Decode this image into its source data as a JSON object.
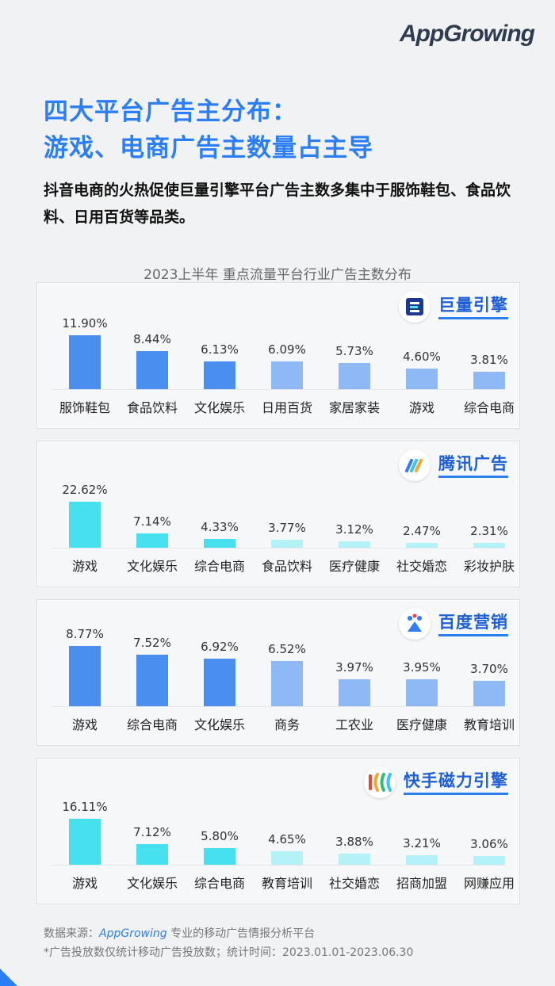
{
  "brand": {
    "logo_text": "AppGrowing"
  },
  "title_lines": [
    "四大平台广告主分布：",
    "游戏、电商广告主数量占主导"
  ],
  "subtitle": "抖音电商的火热促使巨量引擎平台广告主数多集中于服饰鞋包、食品饮料、日用百货等品类。",
  "footer": {
    "source_label": "数据来源：",
    "source_link": "AppGrowing",
    "source_desc": " 专业的移动广告情报分析平台",
    "note": "*广告投放数仅统计移动广告投放数；统计时间：2023.01.01-2023.06.30"
  },
  "chart_data": {
    "type": "bar",
    "title": "2023上半年 重点流量平台行业广告主数分布",
    "unit": "%",
    "colors": {
      "blue_dark": "#4a8ef0",
      "blue_light": "#8fb9f5",
      "cyan_dark": "#46e0ee",
      "cyan_light": "#b3f3f8"
    },
    "panels": [
      {
        "platform": "巨量引擎",
        "icon": "juliang-engine-icon",
        "palette": "blue",
        "highlight_count": 3,
        "categories": [
          "服饰鞋包",
          "食品饮料",
          "文化娱乐",
          "日用百货",
          "家居家装",
          "游戏",
          "综合电商"
        ],
        "values": [
          11.9,
          8.44,
          6.13,
          6.09,
          5.73,
          4.6,
          3.81
        ],
        "labels": [
          "11.90%",
          "8.44%",
          "6.13%",
          "6.09%",
          "5.73%",
          "4.60%",
          "3.81%"
        ]
      },
      {
        "platform": "腾讯广告",
        "icon": "tencent-ads-icon",
        "palette": "cyan",
        "highlight_count": 3,
        "categories": [
          "游戏",
          "文化娱乐",
          "综合电商",
          "食品饮料",
          "医疗健康",
          "社交婚恋",
          "彩妆护肤"
        ],
        "values": [
          22.62,
          7.14,
          4.33,
          3.77,
          3.12,
          2.47,
          2.31
        ],
        "labels": [
          "22.62%",
          "7.14%",
          "4.33%",
          "3.77%",
          "3.12%",
          "2.47%",
          "2.31%"
        ]
      },
      {
        "platform": "百度营销",
        "icon": "baidu-marketing-icon",
        "palette": "blue",
        "highlight_count": 3,
        "categories": [
          "游戏",
          "综合电商",
          "文化娱乐",
          "商务",
          "工农业",
          "医疗健康",
          "教育培训"
        ],
        "values": [
          8.77,
          7.52,
          6.92,
          6.52,
          3.97,
          3.95,
          3.7
        ],
        "labels": [
          "8.77%",
          "7.52%",
          "6.92%",
          "6.52%",
          "3.97%",
          "3.95%",
          "3.70%"
        ]
      },
      {
        "platform": "快手磁力引擎",
        "icon": "kuaishou-magnetic-icon",
        "palette": "cyan",
        "highlight_count": 3,
        "categories": [
          "游戏",
          "文化娱乐",
          "综合电商",
          "教育培训",
          "社交婚恋",
          "招商加盟",
          "网赚应用"
        ],
        "values": [
          16.11,
          7.12,
          5.8,
          4.65,
          3.88,
          3.21,
          3.06
        ],
        "labels": [
          "16.11%",
          "7.12%",
          "5.80%",
          "4.65%",
          "3.88%",
          "3.21%",
          "3.06%"
        ]
      }
    ]
  }
}
